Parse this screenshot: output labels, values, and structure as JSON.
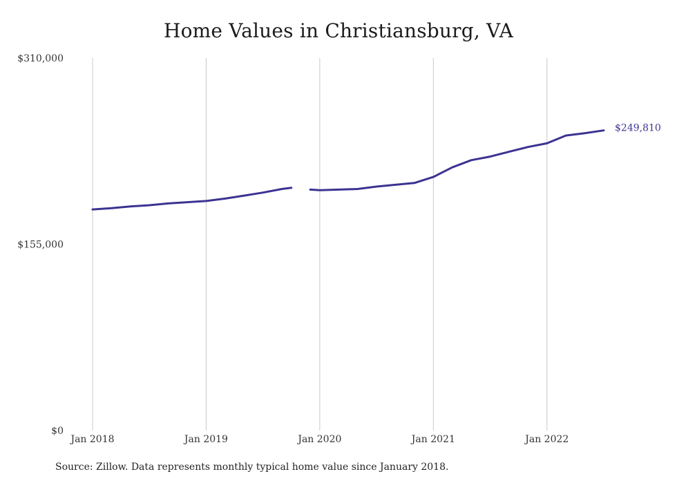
{
  "chart_data": {
    "type": "line",
    "title": "Home Values in Christiansburg, VA",
    "xlabel": "",
    "ylabel": "",
    "x_ticks": [
      {
        "label": "Jan 2018",
        "date": "2018-01"
      },
      {
        "label": "Jan 2019",
        "date": "2019-01"
      },
      {
        "label": "Jan 2020",
        "date": "2020-01"
      },
      {
        "label": "Jan 2021",
        "date": "2021-01"
      },
      {
        "label": "Jan 2022",
        "date": "2022-01"
      }
    ],
    "y_ticks": [
      {
        "label": "$0",
        "value": 0
      },
      {
        "label": "$155,000",
        "value": 155000
      },
      {
        "label": "$310,000",
        "value": 310000
      }
    ],
    "xlim": [
      "2018-01",
      "2022-07"
    ],
    "ylim": [
      0,
      310000
    ],
    "grid": "vertical",
    "line_color": "#3b3391",
    "end_label": "$249,810",
    "series": [
      {
        "segments": [
          [
            {
              "x": "2018-01",
              "y": 184000
            },
            {
              "x": "2018-03",
              "y": 185000
            },
            {
              "x": "2018-05",
              "y": 186500
            },
            {
              "x": "2018-07",
              "y": 187500
            },
            {
              "x": "2018-09",
              "y": 189000
            },
            {
              "x": "2018-11",
              "y": 190000
            },
            {
              "x": "2019-01",
              "y": 191000
            },
            {
              "x": "2019-03",
              "y": 193000
            },
            {
              "x": "2019-05",
              "y": 195500
            },
            {
              "x": "2019-07",
              "y": 198000
            },
            {
              "x": "2019-09",
              "y": 201000
            },
            {
              "x": "2019-10",
              "y": 202000
            }
          ],
          [
            {
              "x": "2019-12",
              "y": 200500
            },
            {
              "x": "2020-01",
              "y": 200000
            },
            {
              "x": "2020-03",
              "y": 200500
            },
            {
              "x": "2020-05",
              "y": 201000
            },
            {
              "x": "2020-07",
              "y": 203000
            },
            {
              "x": "2020-09",
              "y": 204500
            },
            {
              "x": "2020-11",
              "y": 206000
            },
            {
              "x": "2021-01",
              "y": 211000
            },
            {
              "x": "2021-03",
              "y": 219000
            },
            {
              "x": "2021-05",
              "y": 225000
            },
            {
              "x": "2021-07",
              "y": 228000
            },
            {
              "x": "2021-09",
              "y": 232000
            },
            {
              "x": "2021-11",
              "y": 236000
            },
            {
              "x": "2022-01",
              "y": 239000
            },
            {
              "x": "2022-03",
              "y": 245500
            },
            {
              "x": "2022-05",
              "y": 247500
            },
            {
              "x": "2022-07",
              "y": 249810
            }
          ]
        ]
      }
    ]
  },
  "source_note": "Source: Zillow. Data represents monthly typical home value since January 2018."
}
